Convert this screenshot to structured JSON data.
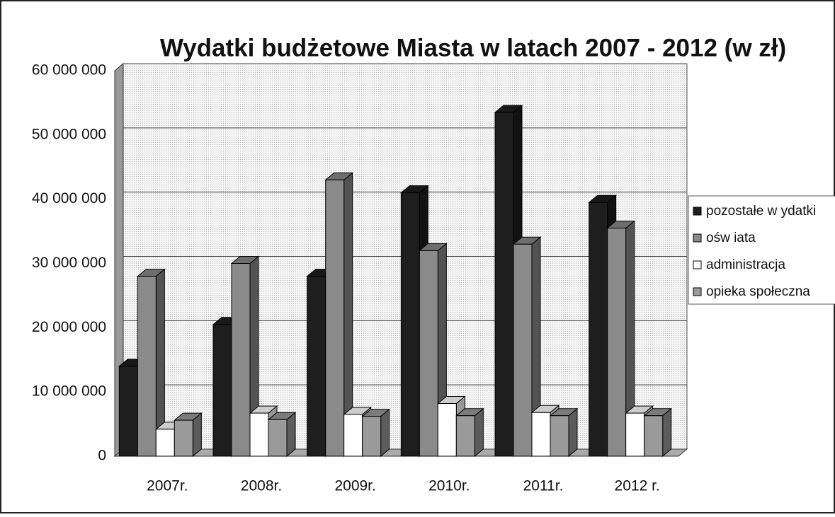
{
  "chart_data": {
    "type": "bar3d",
    "title": "Wydatki budżetowe Miasta w latach 2007 - 2012 (w zł)",
    "categories": [
      "2007r.",
      "2008r.",
      "2009r.",
      "2010r.",
      "2011r.",
      "2012 r."
    ],
    "series": [
      {
        "name": "pozostałe w ydatki",
        "color": "#1e1e1e",
        "values": [
          14000000,
          20500000,
          28000000,
          41000000,
          53500000,
          39500000
        ]
      },
      {
        "name": "ośw iata",
        "color": "#8a8a8a",
        "values": [
          28000000,
          30000000,
          43000000,
          32000000,
          33000000,
          35500000
        ]
      },
      {
        "name": "administracja",
        "color": "#ffffff",
        "values": [
          4200000,
          6700000,
          6500000,
          8200000,
          6800000,
          6700000
        ]
      },
      {
        "name": "opieka społeczna",
        "color": "#9a9a9a",
        "values": [
          5600000,
          5700000,
          6200000,
          6300000,
          6300000,
          6300000
        ]
      }
    ],
    "ylim": [
      0,
      60000000
    ],
    "yticks": [
      0,
      {
        "value": 10000000,
        "label": "10 000 000"
      },
      {
        "value": 20000000,
        "label": "20 000 000"
      },
      {
        "value": 30000000,
        "label": "30 000 000"
      },
      {
        "value": 40000000,
        "label": "40 000 000"
      },
      {
        "value": 50000000,
        "label": "50 000 000"
      },
      {
        "value": 60000000,
        "label": "60 000 000"
      }
    ],
    "grid": true,
    "legend": "right"
  }
}
